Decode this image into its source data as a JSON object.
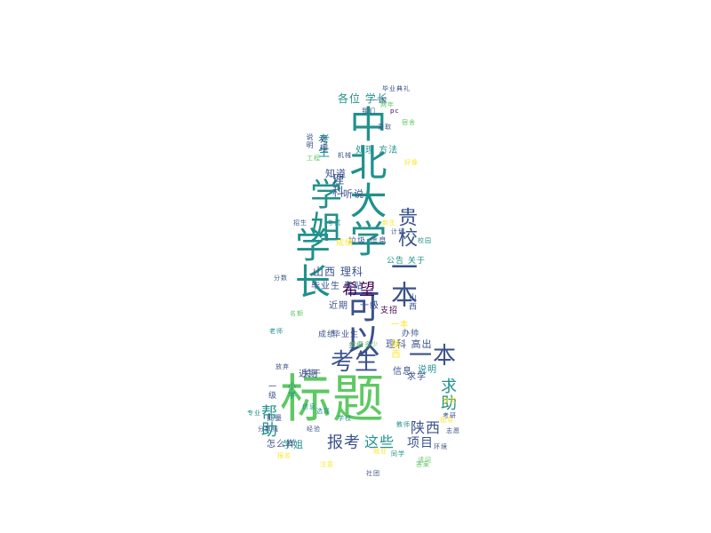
{
  "cloud": {
    "palette": {
      "dark_purple": "#440154",
      "indigo": "#3b528b",
      "teal": "#21918c",
      "green": "#5ec962",
      "yellow": "#fde725"
    },
    "words": [
      {
        "text": "标题",
        "size": 58,
        "color": "#5ec962",
        "vertical": false
      },
      {
        "text": "学长",
        "size": 40,
        "color": "#21918c",
        "vertical": true
      },
      {
        "text": "学姐",
        "size": 36,
        "color": "#21918c",
        "vertical": true
      },
      {
        "text": "中北大学",
        "size": 42,
        "color": "#21918c",
        "vertical": true
      },
      {
        "text": "可以",
        "size": 38,
        "color": "#3b528b",
        "vertical": true
      },
      {
        "text": "一本",
        "size": 30,
        "color": "#3b528b",
        "vertical": true
      },
      {
        "text": "贵校",
        "size": 22,
        "color": "#3b528b",
        "vertical": true
      },
      {
        "text": "考生",
        "size": 26,
        "color": "#3b528b",
        "vertical": false
      },
      {
        "text": "一本",
        "size": 26,
        "color": "#3b528b",
        "vertical": false
      },
      {
        "text": "希望",
        "size": 18,
        "color": "#440154",
        "vertical": false
      },
      {
        "text": "报考",
        "size": 18,
        "color": "#3b528b",
        "vertical": false
      },
      {
        "text": "这些",
        "size": 16,
        "color": "#21918c",
        "vertical": false
      },
      {
        "text": "项目",
        "size": 14,
        "color": "#3b528b",
        "vertical": false
      },
      {
        "text": "陕西",
        "size": 16,
        "color": "#3b528b",
        "vertical": false
      },
      {
        "text": "求助",
        "size": 18,
        "color": "#21918c",
        "vertical": true
      },
      {
        "text": "帮助",
        "size": 18,
        "color": "#21918c",
        "vertical": true
      },
      {
        "text": "各位 学长",
        "size": 12,
        "color": "#21918c",
        "vertical": false
      },
      {
        "text": "理科",
        "size": 13,
        "color": "#3b528b",
        "vertical": true
      },
      {
        "text": "考生",
        "size": 13,
        "color": "#21918c",
        "vertical": true
      },
      {
        "text": "山西 理科",
        "size": 12,
        "color": "#3b528b",
        "vertical": false
      },
      {
        "text": "毕业生 专贴",
        "size": 10,
        "color": "#3b528b",
        "vertical": false
      },
      {
        "text": "听说",
        "size": 11,
        "color": "#3b528b",
        "vertical": false
      },
      {
        "text": "知道",
        "size": 11,
        "color": "#3b528b",
        "vertical": false
      },
      {
        "text": "理科 高出",
        "size": 11,
        "color": "#3b528b",
        "vertical": false
      },
      {
        "text": "垃圾 信息",
        "size": 9,
        "color": "#3b528b",
        "vertical": false
      },
      {
        "text": "公告 关于",
        "size": 9,
        "color": "#21918c",
        "vertical": false
      },
      {
        "text": "近期",
        "size": 10,
        "color": "#3b528b",
        "vertical": false
      },
      {
        "text": "一级",
        "size": 10,
        "color": "#3b528b",
        "vertical": false
      },
      {
        "text": "支招",
        "size": 9,
        "color": "#440154",
        "vertical": false
      },
      {
        "text": "山西",
        "size": 9,
        "color": "#3b528b",
        "vertical": true
      },
      {
        "text": "办帅",
        "size": 9,
        "color": "#3b528b",
        "vertical": false
      },
      {
        "text": "说明",
        "size": 10,
        "color": "#21918c",
        "vertical": false
      },
      {
        "text": "信息",
        "size": 10,
        "color": "#3b528b",
        "vertical": false
      },
      {
        "text": "近期",
        "size": 10,
        "color": "#3b528b",
        "vertical": false
      },
      {
        "text": "关于",
        "size": 10,
        "color": "#3b528b",
        "vertical": false
      },
      {
        "text": "求学",
        "size": 10,
        "color": "#3b528b",
        "vertical": false
      },
      {
        "text": "学姐",
        "size": 11,
        "color": "#21918c",
        "vertical": false
      },
      {
        "text": "怎么样",
        "size": 10,
        "color": "#3b528b",
        "vertical": false
      },
      {
        "text": "处理 方法",
        "size": 10,
        "color": "#21918c",
        "vertical": false
      },
      {
        "text": "成绩",
        "size": 9,
        "color": "#fde725",
        "vertical": false
      },
      {
        "text": "陕西",
        "size": 10,
        "color": "#fde725",
        "vertical": true
      },
      {
        "text": "一本",
        "size": 9,
        "color": "#fde725",
        "vertical": false
      },
      {
        "text": "毕业生",
        "size": 9,
        "color": "#3b528b",
        "vertical": false
      },
      {
        "text": "成绩",
        "size": 9,
        "color": "#3b528b",
        "vertical": false
      },
      {
        "text": "小学",
        "size": 9,
        "color": "#21918c",
        "vertical": true
      },
      {
        "text": "一级",
        "size": 9,
        "color": "#3b528b",
        "vertical": true
      },
      {
        "text": "批量",
        "size": 8,
        "color": "#3b528b",
        "vertical": false
      },
      {
        "text": "多少",
        "size": 8,
        "color": "#3b528b",
        "vertical": false
      },
      {
        "text": "就要多少",
        "size": 7,
        "color": "#5ec962",
        "vertical": false
      },
      {
        "text": "处理",
        "size": 9,
        "color": "#3b528b",
        "vertical": true
      },
      {
        "text": "说明",
        "size": 8,
        "color": "#3b528b",
        "vertical": true
      },
      {
        "text": "教师",
        "size": 7,
        "color": "#21918c",
        "vertical": false
      },
      {
        "text": "指导",
        "size": 7,
        "color": "#fde725",
        "vertical": false
      },
      {
        "text": "我们",
        "size": 7,
        "color": "#3b528b",
        "vertical": false
      },
      {
        "text": "毕业典礼",
        "size": 7,
        "color": "#3b528b",
        "vertical": false
      },
      {
        "text": "pc",
        "size": 7,
        "color": "#440154",
        "vertical": false
      },
      {
        "text": "一般",
        "size": 7,
        "color": "#3b528b",
        "vertical": false
      },
      {
        "text": "两年",
        "size": 7,
        "color": "#5ec962",
        "vertical": false
      },
      {
        "text": "好像",
        "size": 7,
        "color": "#fde725",
        "vertical": false
      },
      {
        "text": "放弃",
        "size": 7,
        "color": "#3b528b",
        "vertical": false
      },
      {
        "text": "信息",
        "size": 7,
        "color": "#21918c",
        "vertical": false
      },
      {
        "text": "考研",
        "size": 7,
        "color": "#3b528b",
        "vertical": false
      },
      {
        "text": "志愿",
        "size": 7,
        "color": "#3b528b",
        "vertical": false
      },
      {
        "text": "答案",
        "size": 7,
        "color": "#5ec962",
        "vertical": false
      },
      {
        "text": "同学",
        "size": 7,
        "color": "#21918c",
        "vertical": false
      },
      {
        "text": "社团",
        "size": 7,
        "color": "#3b528b",
        "vertical": false
      },
      {
        "text": "注意",
        "size": 7,
        "color": "#fde725",
        "vertical": false
      },
      {
        "text": "分数线",
        "size": 7,
        "color": "#3b528b",
        "vertical": false
      },
      {
        "text": "专业",
        "size": 7,
        "color": "#21918c",
        "vertical": false
      },
      {
        "text": "宿舍",
        "size": 7,
        "color": "#5ec962",
        "vertical": false
      },
      {
        "text": "录取",
        "size": 7,
        "color": "#3b528b",
        "vertical": false
      },
      {
        "text": "学校",
        "size": 7,
        "color": "#21918c",
        "vertical": false
      },
      {
        "text": "食堂",
        "size": 7,
        "color": "#fde725",
        "vertical": false
      },
      {
        "text": "机械",
        "size": 7,
        "color": "#3b528b",
        "vertical": false
      },
      {
        "text": "工程",
        "size": 7,
        "color": "#5ec962",
        "vertical": false
      },
      {
        "text": "老师",
        "size": 7,
        "color": "#21918c",
        "vertical": false
      },
      {
        "text": "分数",
        "size": 7,
        "color": "#3b528b",
        "vertical": false
      },
      {
        "text": "新生",
        "size": 7,
        "color": "#fde725",
        "vertical": false
      },
      {
        "text": "校园",
        "size": 7,
        "color": "#21918c",
        "vertical": false
      },
      {
        "text": "计划",
        "size": 7,
        "color": "#3b528b",
        "vertical": false
      },
      {
        "text": "名额",
        "size": 7,
        "color": "#5ec962",
        "vertical": false
      },
      {
        "text": "招生",
        "size": 7,
        "color": "#3b528b",
        "vertical": false
      },
      {
        "text": "考试",
        "size": 7,
        "color": "#21918c",
        "vertical": false
      },
      {
        "text": "就业",
        "size": 7,
        "color": "#fde725",
        "vertical": false
      },
      {
        "text": "环境",
        "size": 7,
        "color": "#3b528b",
        "vertical": false
      },
      {
        "text": "请问",
        "size": 7,
        "color": "#5ec962",
        "vertical": false
      },
      {
        "text": "选择",
        "size": 7,
        "color": "#21918c",
        "vertical": false
      },
      {
        "text": "经验",
        "size": 7,
        "color": "#3b528b",
        "vertical": false
      },
      {
        "text": "报名",
        "size": 7,
        "color": "#fde725",
        "vertical": false
      }
    ]
  }
}
